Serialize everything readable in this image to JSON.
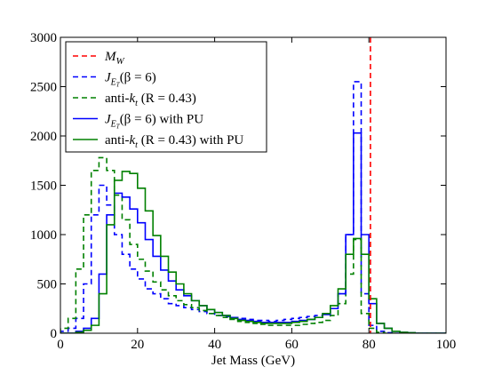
{
  "chart_data": {
    "type": "line",
    "xlabel": "Jet Mass (GeV)",
    "ylabel": "",
    "xlim": [
      0,
      100
    ],
    "ylim": [
      0,
      3000
    ],
    "x_ticks": [
      "0",
      "20",
      "40",
      "60",
      "80",
      "100"
    ],
    "y_ticks": [
      "0",
      "500",
      "1000",
      "1500",
      "2000",
      "2500",
      "3000"
    ],
    "grid": false,
    "legend_position": "top-left",
    "reference_line": {
      "name": "M_W",
      "x": 80.4,
      "color": "#ff0000",
      "style": "dashed"
    },
    "bin_edges": [
      0,
      2,
      4,
      6,
      8,
      10,
      12,
      14,
      16,
      18,
      20,
      22,
      24,
      26,
      28,
      30,
      32,
      34,
      36,
      38,
      40,
      42,
      44,
      46,
      48,
      50,
      52,
      54,
      56,
      58,
      60,
      62,
      64,
      66,
      68,
      70,
      72,
      74,
      76,
      78,
      80,
      82,
      84,
      86,
      88,
      90,
      92,
      94,
      96,
      98,
      100
    ],
    "series": [
      {
        "name": "J_ET(β = 6)",
        "color": "#0000ff",
        "style": "dashed",
        "values": [
          20,
          50,
          150,
          500,
          1200,
          1500,
          1300,
          1000,
          800,
          650,
          550,
          450,
          400,
          350,
          300,
          280,
          260,
          240,
          220,
          200,
          180,
          170,
          160,
          150,
          140,
          130,
          130,
          120,
          130,
          140,
          150,
          160,
          170,
          180,
          200,
          250,
          400,
          1000,
          2550,
          400,
          80,
          20,
          5,
          0,
          0,
          0,
          0,
          0,
          0,
          0
        ]
      },
      {
        "name": "anti-k_t (R = 0.43)",
        "color": "#008000",
        "style": "dashed",
        "values": [
          50,
          150,
          650,
          1200,
          1650,
          1780,
          1650,
          1400,
          1150,
          900,
          750,
          630,
          520,
          440,
          380,
          330,
          290,
          260,
          230,
          200,
          180,
          160,
          140,
          120,
          110,
          100,
          90,
          80,
          80,
          80,
          80,
          90,
          100,
          110,
          130,
          180,
          300,
          600,
          950,
          200,
          50,
          10,
          0,
          0,
          0,
          0,
          0,
          0,
          0,
          0
        ]
      },
      {
        "name": "J_ET(β = 6) with PU",
        "color": "#0000ff",
        "style": "solid",
        "values": [
          0,
          0,
          20,
          50,
          150,
          600,
          1200,
          1420,
          1380,
          1260,
          1120,
          950,
          780,
          640,
          530,
          440,
          380,
          330,
          280,
          240,
          210,
          180,
          160,
          140,
          130,
          120,
          110,
          110,
          110,
          110,
          120,
          130,
          140,
          160,
          190,
          250,
          400,
          1000,
          2030,
          1000,
          300,
          100,
          50,
          20,
          10,
          5,
          0,
          0,
          0,
          0
        ]
      },
      {
        "name": "anti-k_t (R = 0.43) with PU",
        "color": "#008000",
        "style": "solid",
        "values": [
          0,
          0,
          10,
          30,
          80,
          400,
          1100,
          1550,
          1640,
          1620,
          1470,
          1240,
          990,
          780,
          620,
          500,
          400,
          330,
          280,
          240,
          210,
          180,
          150,
          130,
          120,
          110,
          100,
          100,
          100,
          100,
          110,
          120,
          140,
          160,
          200,
          280,
          450,
          800,
          960,
          800,
          350,
          100,
          50,
          20,
          10,
          5,
          0,
          0,
          0,
          0
        ]
      }
    ]
  }
}
